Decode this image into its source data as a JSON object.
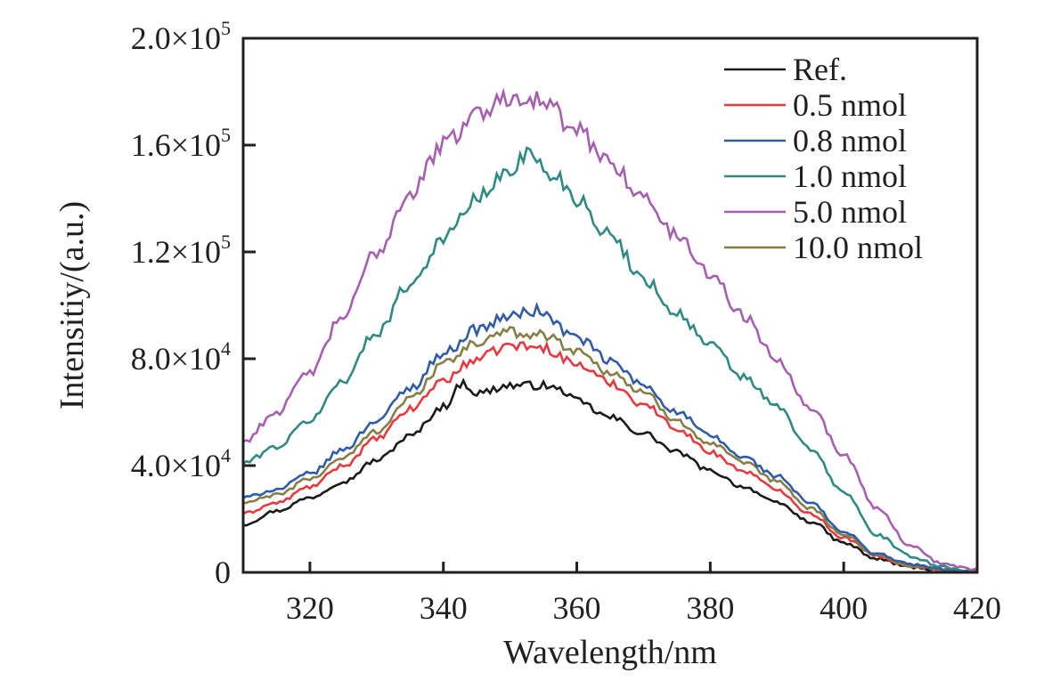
{
  "chart_data": {
    "type": "line",
    "title": "",
    "xlabel": "Wavelength/nm",
    "ylabel": "Intensitiy/(a.u.)",
    "xlim": [
      310,
      420
    ],
    "ylim": [
      0,
      200000
    ],
    "grid": false,
    "legend_position": "top-right",
    "x_ticks": [
      320,
      340,
      360,
      380,
      400,
      420
    ],
    "x_tick_labels": [
      "320",
      "340",
      "360",
      "380",
      "400",
      "420"
    ],
    "y_ticks": [
      0,
      40000,
      80000,
      120000,
      160000,
      200000
    ],
    "y_tick_labels": [
      {
        "mantissa": "0",
        "exponent": ""
      },
      {
        "mantissa": "4.0×10",
        "exponent": "4"
      },
      {
        "mantissa": "8.0×10",
        "exponent": "4"
      },
      {
        "mantissa": "1.2×10",
        "exponent": "5"
      },
      {
        "mantissa": "1.6×10",
        "exponent": "5"
      },
      {
        "mantissa": "2.0×10",
        "exponent": "5"
      }
    ],
    "series": [
      {
        "name": "Ref.",
        "color": "#1a1a1a",
        "x": [
          310,
          315,
          320,
          325,
          330,
          335,
          340,
          343,
          345,
          350,
          355,
          358,
          360,
          365,
          370,
          375,
          380,
          385,
          390,
          395,
          400,
          405,
          410,
          415,
          420
        ],
        "y": [
          18000,
          23000,
          28000,
          34000,
          42000,
          51000,
          62000,
          71000,
          67000,
          70000,
          70000,
          68000,
          64000,
          58000,
          52000,
          45000,
          38000,
          32000,
          26000,
          19000,
          11000,
          5000,
          2000,
          800,
          0
        ]
      },
      {
        "name": "0.5 nmol",
        "color": "#e8393f",
        "x": [
          310,
          315,
          320,
          325,
          330,
          335,
          340,
          345,
          350,
          355,
          360,
          365,
          370,
          375,
          380,
          385,
          390,
          395,
          400,
          405,
          410,
          415,
          420
        ],
        "y": [
          22000,
          26000,
          32000,
          40000,
          50000,
          61000,
          72000,
          80000,
          85000,
          84000,
          78000,
          71000,
          63000,
          54000,
          45000,
          38000,
          31000,
          22000,
          13000,
          6000,
          2500,
          1000,
          0
        ]
      },
      {
        "name": "0.8 nmol",
        "color": "#2f5ca8",
        "x": [
          310,
          315,
          320,
          325,
          330,
          335,
          340,
          345,
          350,
          354,
          360,
          365,
          370,
          375,
          380,
          385,
          390,
          395,
          400,
          405,
          410,
          415,
          420
        ],
        "y": [
          28000,
          31000,
          37000,
          46000,
          57000,
          69000,
          82000,
          91000,
          96000,
          98000,
          88000,
          79000,
          70000,
          60000,
          51000,
          43000,
          36000,
          26000,
          15000,
          7000,
          3000,
          1000,
          0
        ]
      },
      {
        "name": "1.0 nmol",
        "color": "#2e8a82",
        "x": [
          310,
          315,
          320,
          325,
          330,
          335,
          340,
          345,
          350,
          352,
          357,
          360,
          365,
          370,
          375,
          380,
          385,
          390,
          395,
          400,
          405,
          410,
          415,
          420
        ],
        "y": [
          41000,
          47000,
          57000,
          72000,
          90000,
          108000,
          125000,
          140000,
          150000,
          157000,
          148000,
          140000,
          126000,
          110000,
          97000,
          85000,
          73000,
          62000,
          46000,
          30000,
          14000,
          6000,
          2000,
          0
        ]
      },
      {
        "name": "5.0 nmol",
        "color": "#a65fb0",
        "x": [
          310,
          315,
          320,
          325,
          330,
          335,
          340,
          345,
          350,
          352,
          355,
          360,
          365,
          370,
          375,
          380,
          385,
          390,
          395,
          400,
          405,
          410,
          415,
          420
        ],
        "y": [
          49000,
          60000,
          75000,
          96000,
          120000,
          142000,
          160000,
          172000,
          178000,
          179000,
          176000,
          165000,
          154000,
          140000,
          126000,
          112000,
          96000,
          80000,
          62000,
          44000,
          24000,
          10000,
          3000,
          1000
        ]
      },
      {
        "name": "10.0 nmol",
        "color": "#857f46",
        "x": [
          310,
          315,
          320,
          325,
          330,
          335,
          340,
          345,
          350,
          355,
          360,
          365,
          370,
          375,
          380,
          385,
          390,
          395,
          400,
          405,
          410,
          415,
          420
        ],
        "y": [
          26000,
          29000,
          35000,
          43000,
          53000,
          65000,
          78000,
          86000,
          90000,
          89000,
          83000,
          75000,
          67000,
          57000,
          48000,
          41000,
          34000,
          24000,
          14000,
          6500,
          2500,
          1000,
          0
        ]
      }
    ]
  }
}
